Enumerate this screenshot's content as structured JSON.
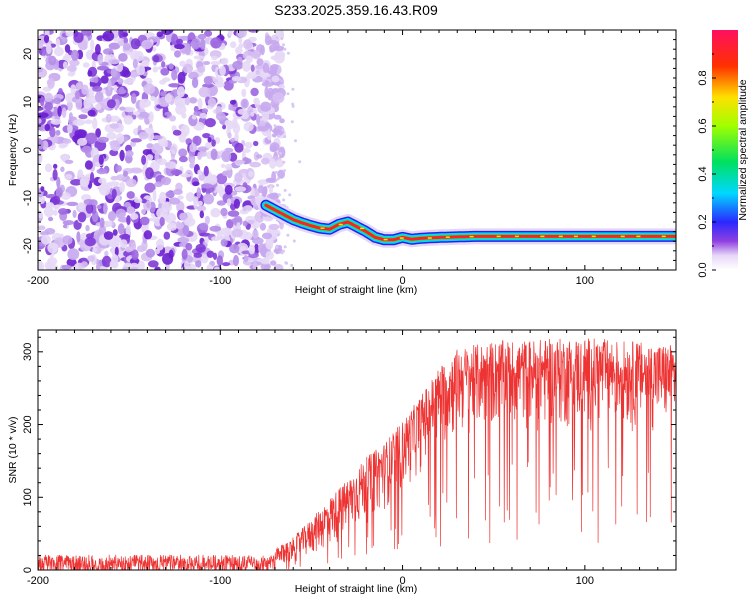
{
  "title": "S233.2025.359.16.43.R09",
  "chart_data": [
    {
      "type": "heatmap",
      "xlabel": "Height of straight line (km)",
      "ylabel": "Frequency (Hz)",
      "xlim": [
        -200,
        150
      ],
      "ylim": [
        -25,
        25
      ],
      "x_ticks": [
        -200,
        -100,
        0,
        100
      ],
      "y_ticks": [
        20,
        10,
        0,
        -10,
        -20
      ],
      "colorbar": {
        "label": "Normalized spectral amplitude",
        "range": [
          0.0,
          1.0
        ],
        "ticks": [
          "0.0",
          "0.2",
          "0.4",
          "0.6",
          "0.8"
        ]
      },
      "noise_region_x": [
        -200,
        -70
      ],
      "signal_ridge": {
        "x": [
          -75,
          -70,
          -65,
          -60,
          -55,
          -50,
          -45,
          -40,
          -35,
          -30,
          -25,
          -20,
          -15,
          -10,
          -5,
          0,
          5,
          10,
          20,
          40,
          60,
          80,
          100,
          120,
          150
        ],
        "y": [
          -11.5,
          -12.5,
          -13.5,
          -14.5,
          -15.2,
          -15.8,
          -16.3,
          -16.5,
          -15.5,
          -15.0,
          -16.0,
          -17.0,
          -18.2,
          -18.7,
          -18.7,
          -18.2,
          -18.6,
          -18.4,
          -18.2,
          -18.0,
          -18.0,
          -18.0,
          -18.0,
          -18.0,
          -18.0
        ]
      }
    },
    {
      "type": "line",
      "xlabel": "Height of straight line (km)",
      "ylabel": "SNR (10 * v/v)",
      "xlim": [
        -200,
        150
      ],
      "ylim": [
        0,
        330
      ],
      "x_ticks": [
        -200,
        -100,
        0,
        100
      ],
      "y_ticks": [
        0,
        100,
        200,
        300
      ],
      "color": "#ee3333",
      "envelope": {
        "x": [
          -200,
          -150,
          -100,
          -70,
          -60,
          -50,
          -40,
          -30,
          -20,
          -10,
          0,
          10,
          20,
          30,
          50,
          100,
          150
        ],
        "upper": [
          28,
          28,
          28,
          28,
          45,
          70,
          100,
          125,
          155,
          175,
          205,
          240,
          280,
          305,
          315,
          320,
          310
        ],
        "lower": [
          0,
          0,
          0,
          0,
          5,
          15,
          25,
          40,
          60,
          80,
          100,
          130,
          160,
          175,
          185,
          185,
          185
        ]
      }
    }
  ]
}
